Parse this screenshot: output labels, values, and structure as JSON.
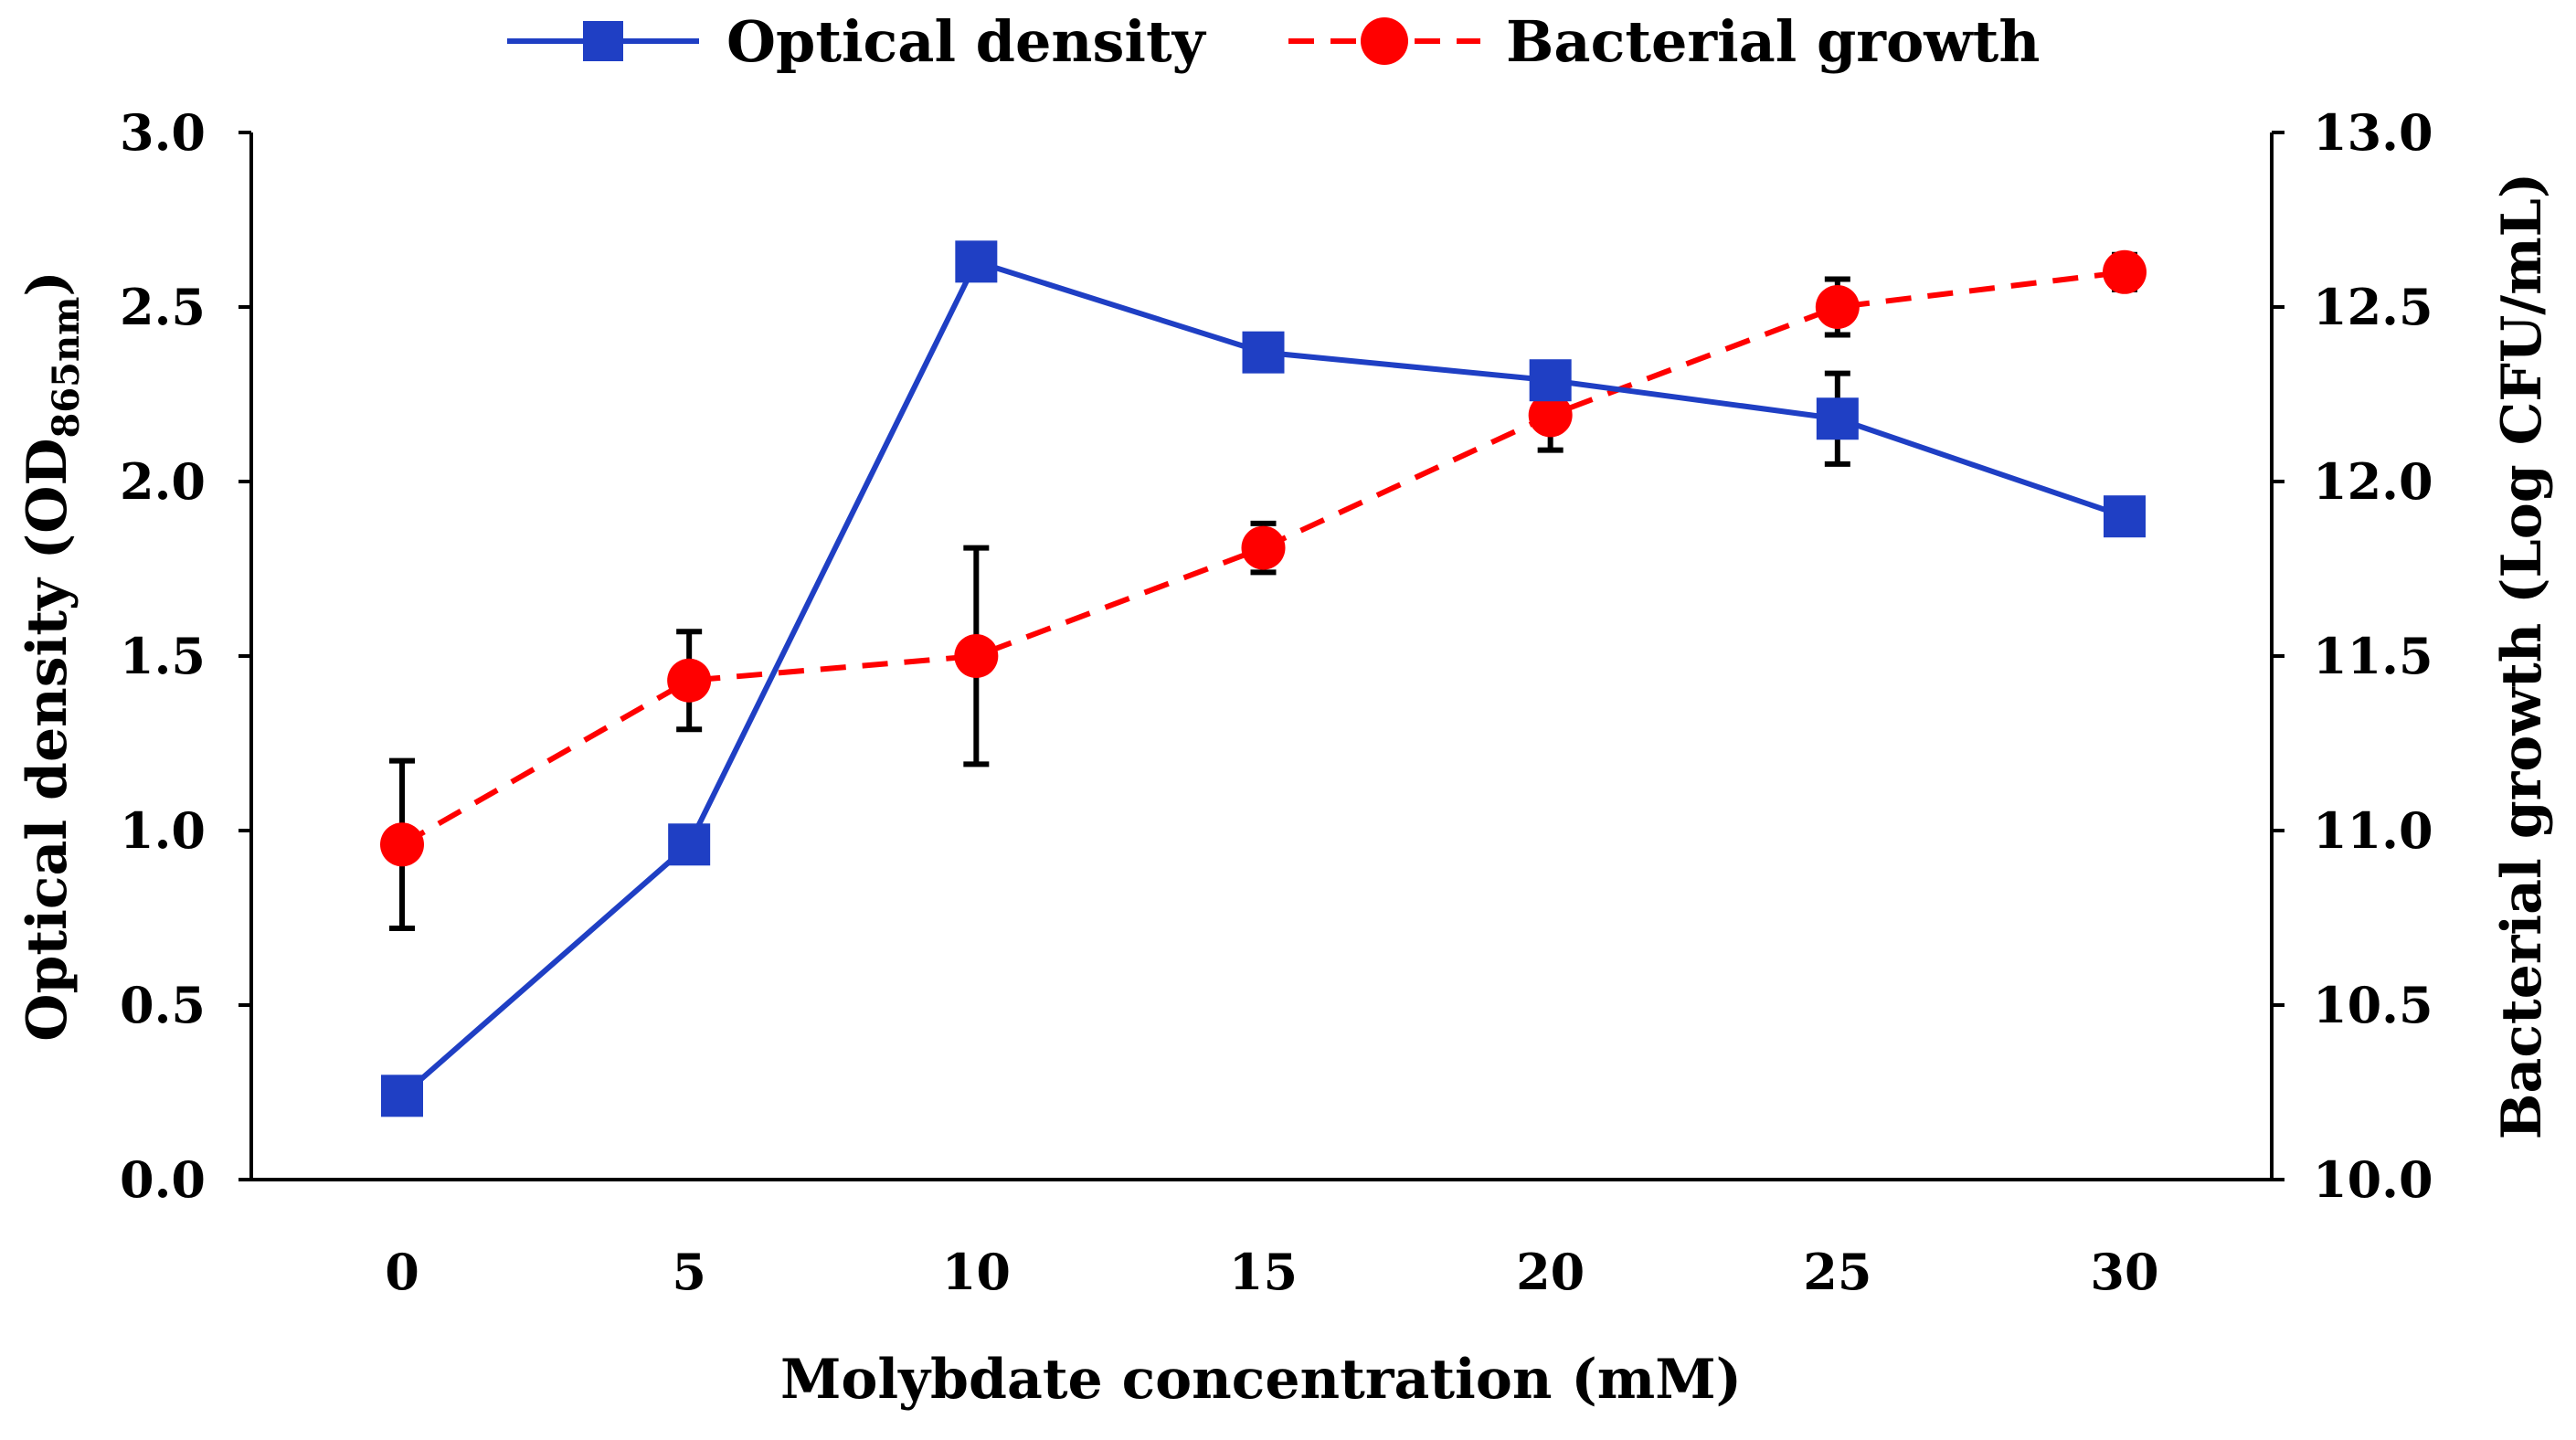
{
  "chart_data": {
    "type": "line",
    "title": "",
    "x": [
      0,
      5,
      10,
      15,
      20,
      25,
      30
    ],
    "x_ticks": [
      "0",
      "5",
      "10",
      "15",
      "20",
      "25",
      "30"
    ],
    "xlabel": "Molybdate concentration (mM)",
    "ylabel_left": {
      "main": "Optical density (OD",
      "subscript": "865nm",
      "close": ")"
    },
    "ylabel_right": "Bacterial growth (Log CFU/mL)",
    "ylim_left": [
      0,
      3
    ],
    "ylim_right": [
      10,
      13
    ],
    "y_ticks_left": [
      "0.0",
      "0.5",
      "1.0",
      "1.5",
      "2.0",
      "2.5",
      "3.0"
    ],
    "y_ticks_right": [
      "10.0",
      "10.5",
      "11.0",
      "11.5",
      "12.0",
      "12.5",
      "13.0"
    ],
    "legend_position": "top-center",
    "series": [
      {
        "name": "Optical density",
        "axis": "left",
        "color": "#1f3fc4",
        "marker": "square",
        "line_style": "solid",
        "values": [
          0.24,
          0.96,
          2.63,
          2.37,
          2.29,
          2.18,
          1.9
        ],
        "errors": [
          0.0,
          0.0,
          0.0,
          0.0,
          0.0,
          0.13,
          0.0
        ]
      },
      {
        "name": "Bacterial growth",
        "axis": "right",
        "color": "#ff0000",
        "marker": "circle",
        "line_style": "dashed",
        "values": [
          10.96,
          11.43,
          11.5,
          11.81,
          12.19,
          12.5,
          12.6
        ],
        "errors": [
          0.24,
          0.14,
          0.31,
          0.07,
          0.1,
          0.08,
          0.05
        ]
      }
    ]
  }
}
